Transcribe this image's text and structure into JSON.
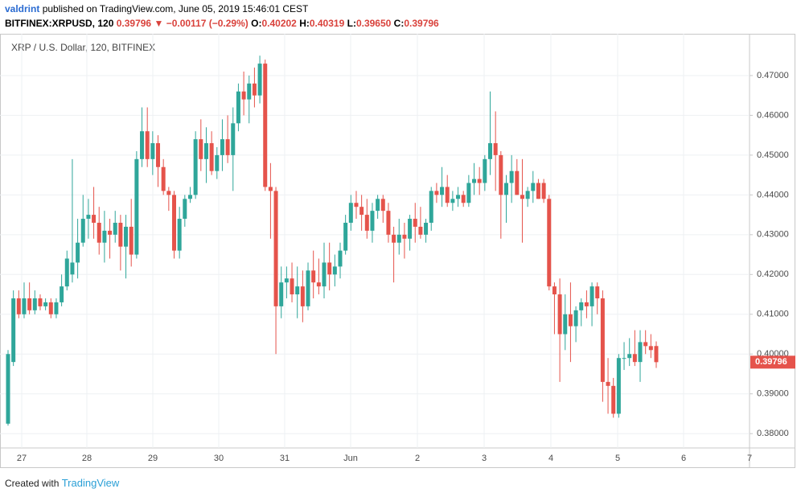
{
  "header": {
    "author": "valdrint",
    "published": "published on TradingView.com, June 05, 2019 15:46:01 CEST",
    "symbol": "BITFINEX:XRPUSD, 120",
    "last": "0.39796",
    "arrow": "▼",
    "change": "−0.00117 (−0.29%)",
    "o_label": "O:",
    "open": "0.40202",
    "h_label": "H:",
    "high": "0.40319",
    "l_label": "L:",
    "low": "0.39650",
    "c_label": "C:",
    "close": "0.39796"
  },
  "footer": {
    "created": "Created with",
    "brand": "TradingView"
  },
  "chart_data": {
    "type": "candlestick",
    "title": "XRP / U.S. Dollar, 120, BITFINEX",
    "up_color": "#2fa69a",
    "down_color": "#e5534b",
    "grid": true,
    "categories": [
      "27",
      "28",
      "29",
      "30",
      "31",
      "Jun",
      "2",
      "3",
      "4",
      "5",
      "6",
      "7"
    ],
    "ylim": [
      0.3764,
      0.4805
    ],
    "yticks": [
      {
        "value": 0.38,
        "label": "0.38000"
      },
      {
        "value": 0.39,
        "label": "0.39000"
      },
      {
        "value": 0.4,
        "label": "0.40000"
      },
      {
        "value": 0.41,
        "label": "0.41000"
      },
      {
        "value": 0.42,
        "label": "0.42000"
      },
      {
        "value": 0.43,
        "label": "0.43000"
      },
      {
        "value": 0.44,
        "label": "0.44000"
      },
      {
        "value": 0.45,
        "label": "0.45000"
      },
      {
        "value": 0.46,
        "label": "0.46000"
      },
      {
        "value": 0.47,
        "label": "0.47000"
      }
    ],
    "open": [
      0.3825,
      0.398,
      0.414,
      0.41,
      0.414,
      0.411,
      0.414,
      0.412,
      0.413,
      0.41,
      0.413,
      0.417,
      0.42,
      0.423,
      0.428,
      0.434,
      0.435,
      0.433,
      0.428,
      0.431,
      0.43,
      0.433,
      0.427,
      0.432,
      0.425,
      0.449,
      0.456,
      0.449,
      0.453,
      0.447,
      0.441,
      0.44,
      0.426,
      0.434,
      0.439,
      0.44,
      0.454,
      0.449,
      0.453,
      0.446,
      0.45,
      0.454,
      0.45,
      0.458,
      0.466,
      0.464,
      0.468,
      0.465,
      0.473,
      0.442,
      0.441,
      0.412,
      0.418,
      0.419,
      0.415,
      0.417,
      0.412,
      0.421,
      0.418,
      0.417,
      0.423,
      0.42,
      0.422,
      0.426,
      0.433,
      0.438,
      0.437,
      0.435,
      0.431,
      0.436,
      0.439,
      0.436,
      0.43,
      0.428,
      0.43,
      0.429,
      0.434,
      0.432,
      0.43,
      0.433,
      0.441,
      0.44,
      0.442,
      0.438,
      0.439,
      0.44,
      0.438,
      0.443,
      0.444,
      0.443,
      0.449,
      0.453,
      0.45,
      0.44,
      0.443,
      0.446,
      0.44,
      0.439,
      0.441,
      0.443,
      0.443,
      0.439,
      0.417,
      0.415,
      0.405,
      0.41,
      0.407,
      0.411,
      0.413,
      0.412,
      0.417,
      0.414,
      0.393,
      0.392,
      0.385,
      0.399,
      0.399,
      0.4,
      0.398,
      0.403,
      0.402,
      0.40202
    ],
    "high": [
      0.401,
      0.416,
      0.416,
      0.418,
      0.418,
      0.416,
      0.415,
      0.414,
      0.414,
      0.414,
      0.42,
      0.426,
      0.449,
      0.434,
      0.44,
      0.439,
      0.442,
      0.437,
      0.436,
      0.434,
      0.436,
      0.435,
      0.435,
      0.439,
      0.451,
      0.462,
      0.462,
      0.456,
      0.455,
      0.449,
      0.442,
      0.441,
      0.437,
      0.44,
      0.442,
      0.456,
      0.459,
      0.457,
      0.456,
      0.452,
      0.459,
      0.46,
      0.462,
      0.468,
      0.471,
      0.47,
      0.472,
      0.475,
      0.474,
      0.448,
      0.442,
      0.422,
      0.422,
      0.423,
      0.422,
      0.421,
      0.423,
      0.426,
      0.424,
      0.428,
      0.428,
      0.425,
      0.428,
      0.435,
      0.44,
      0.441,
      0.44,
      0.439,
      0.438,
      0.44,
      0.44,
      0.438,
      0.432,
      0.434,
      0.433,
      0.435,
      0.438,
      0.437,
      0.434,
      0.442,
      0.443,
      0.447,
      0.445,
      0.441,
      0.442,
      0.441,
      0.445,
      0.448,
      0.447,
      0.45,
      0.466,
      0.461,
      0.451,
      0.445,
      0.45,
      0.449,
      0.449,
      0.442,
      0.446,
      0.444,
      0.444,
      0.44,
      0.418,
      0.419,
      0.415,
      0.418,
      0.412,
      0.414,
      0.416,
      0.418,
      0.418,
      0.416,
      0.399,
      0.394,
      0.4,
      0.403,
      0.404,
      0.406,
      0.406,
      0.406,
      0.405,
      0.40319
    ],
    "low": [
      0.382,
      0.397,
      0.409,
      0.409,
      0.41,
      0.41,
      0.411,
      0.411,
      0.409,
      0.409,
      0.412,
      0.416,
      0.418,
      0.419,
      0.427,
      0.429,
      0.429,
      0.425,
      0.423,
      0.424,
      0.428,
      0.421,
      0.419,
      0.422,
      0.424,
      0.447,
      0.447,
      0.445,
      0.442,
      0.44,
      0.436,
      0.424,
      0.424,
      0.432,
      0.438,
      0.439,
      0.446,
      0.443,
      0.445,
      0.444,
      0.446,
      0.448,
      0.441,
      0.456,
      0.46,
      0.458,
      0.462,
      0.463,
      0.441,
      0.429,
      0.4,
      0.409,
      0.414,
      0.413,
      0.409,
      0.408,
      0.411,
      0.414,
      0.415,
      0.414,
      0.416,
      0.417,
      0.419,
      0.425,
      0.431,
      0.434,
      0.431,
      0.429,
      0.428,
      0.434,
      0.433,
      0.428,
      0.418,
      0.425,
      0.424,
      0.426,
      0.428,
      0.429,
      0.428,
      0.431,
      0.438,
      0.437,
      0.437,
      0.436,
      0.437,
      0.437,
      0.437,
      0.44,
      0.44,
      0.441,
      0.445,
      0.441,
      0.429,
      0.433,
      0.438,
      0.44,
      0.428,
      0.437,
      0.438,
      0.439,
      0.438,
      0.416,
      0.405,
      0.393,
      0.401,
      0.398,
      0.403,
      0.407,
      0.409,
      0.407,
      0.41,
      0.388,
      0.385,
      0.384,
      0.384,
      0.396,
      0.397,
      0.397,
      0.393,
      0.4,
      0.399,
      0.3965
    ],
    "close": [
      0.4,
      0.414,
      0.41,
      0.414,
      0.411,
      0.414,
      0.412,
      0.413,
      0.41,
      0.413,
      0.417,
      0.424,
      0.423,
      0.428,
      0.434,
      0.435,
      0.433,
      0.428,
      0.431,
      0.43,
      0.433,
      0.427,
      0.432,
      0.425,
      0.449,
      0.456,
      0.449,
      0.453,
      0.447,
      0.441,
      0.44,
      0.426,
      0.434,
      0.439,
      0.44,
      0.454,
      0.449,
      0.453,
      0.446,
      0.45,
      0.454,
      0.45,
      0.458,
      0.466,
      0.464,
      0.468,
      0.465,
      0.473,
      0.442,
      0.441,
      0.412,
      0.418,
      0.419,
      0.415,
      0.417,
      0.412,
      0.421,
      0.418,
      0.417,
      0.423,
      0.42,
      0.422,
      0.426,
      0.433,
      0.438,
      0.437,
      0.435,
      0.431,
      0.436,
      0.439,
      0.436,
      0.43,
      0.428,
      0.43,
      0.429,
      0.434,
      0.432,
      0.43,
      0.433,
      0.441,
      0.44,
      0.442,
      0.438,
      0.439,
      0.44,
      0.438,
      0.443,
      0.444,
      0.443,
      0.449,
      0.453,
      0.45,
      0.44,
      0.443,
      0.446,
      0.44,
      0.439,
      0.441,
      0.443,
      0.439,
      0.439,
      0.417,
      0.415,
      0.405,
      0.41,
      0.407,
      0.411,
      0.413,
      0.412,
      0.417,
      0.414,
      0.393,
      0.392,
      0.385,
      0.399,
      0.399,
      0.4,
      0.398,
      0.403,
      0.402,
      0.401,
      0.39796
    ]
  }
}
